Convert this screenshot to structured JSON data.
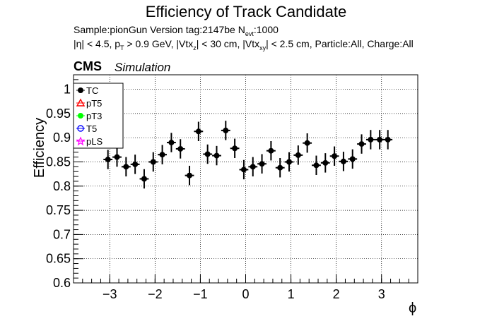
{
  "figure": {
    "title": "Efficiency of Track Candidate",
    "line1": "Sample:pionGun   Version tag:2147be  N",
    "line1_sub": "evt",
    "line1_tail": ":1000",
    "line2_pre": "|η| < 4.5, p",
    "line2_pT_sub": "T",
    "line2_mid": " > 0.9 GeV, |Vtx",
    "line2_z_sub": "z",
    "line2_mid2": "| < 30 cm, |Vtx",
    "line2_xy_sub": "xy",
    "line2_tail": "| < 2.5 cm, Particle:All, Charge:All",
    "cms": "CMS",
    "simulation": "Simulation"
  },
  "chart_data": {
    "type": "scatter",
    "xlabel": "ϕ",
    "ylabel": "Efficiency",
    "xlim": [
      -3.8,
      3.8
    ],
    "ylim": [
      0.6,
      1.03
    ],
    "xticks": [
      -3,
      -2,
      -1,
      0,
      1,
      2,
      3
    ],
    "xtick_labels": [
      "−3",
      "−2",
      "−1",
      "0",
      "1",
      "2",
      "3"
    ],
    "yticks": [
      0.6,
      0.65,
      0.7,
      0.75,
      0.8,
      0.85,
      0.9,
      0.95,
      1
    ],
    "ytick_labels": [
      "0.6",
      "0.65",
      "0.7",
      "0.75",
      "0.8",
      "0.85",
      "0.9",
      "0.95",
      "1"
    ],
    "grid": true,
    "legend": {
      "position": "top-left",
      "entries": [
        {
          "label": "TC",
          "color": "#000000",
          "marker": "circle-filled"
        },
        {
          "label": "pT5",
          "color": "#ff0000",
          "marker": "triangle-open"
        },
        {
          "label": "pT3",
          "color": "#00ff00",
          "marker": "circle-filled"
        },
        {
          "label": "T5",
          "color": "#0000ff",
          "marker": "circle-open"
        },
        {
          "label": "pLS",
          "color": "#ff00ff",
          "marker": "star-open"
        }
      ]
    },
    "series": [
      {
        "name": "TC",
        "color": "#000000",
        "x": [
          -3.04,
          -2.84,
          -2.64,
          -2.44,
          -2.24,
          -2.04,
          -1.84,
          -1.64,
          -1.44,
          -1.24,
          -1.04,
          -0.84,
          -0.64,
          -0.44,
          -0.24,
          -0.04,
          0.16,
          0.36,
          0.56,
          0.76,
          0.96,
          1.16,
          1.36,
          1.56,
          1.76,
          1.96,
          2.16,
          2.36,
          2.56,
          2.76,
          2.96,
          3.14
        ],
        "y": [
          0.855,
          0.86,
          0.84,
          0.845,
          0.815,
          0.85,
          0.865,
          0.89,
          0.877,
          0.822,
          0.913,
          0.866,
          0.863,
          0.915,
          0.878,
          0.834,
          0.84,
          0.846,
          0.873,
          0.838,
          0.85,
          0.864,
          0.889,
          0.843,
          0.848,
          0.862,
          0.851,
          0.856,
          0.887,
          0.896,
          0.896,
          0.896
        ],
        "yerr": [
          0.02,
          0.02,
          0.02,
          0.02,
          0.02,
          0.02,
          0.02,
          0.02,
          0.02,
          0.02,
          0.02,
          0.02,
          0.02,
          0.02,
          0.02,
          0.02,
          0.02,
          0.02,
          0.02,
          0.02,
          0.02,
          0.02,
          0.02,
          0.02,
          0.02,
          0.02,
          0.02,
          0.02,
          0.02,
          0.02,
          0.02,
          0.02
        ]
      }
    ]
  }
}
